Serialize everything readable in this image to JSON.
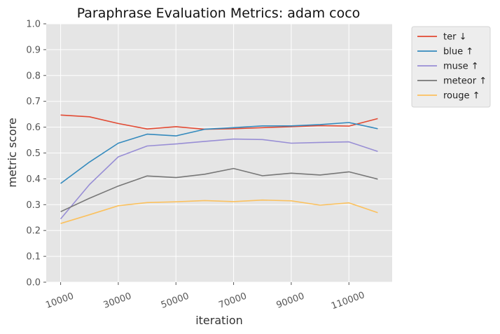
{
  "chart_data": {
    "type": "line",
    "title": "Paraphrase Evaluation Metrics: adam coco",
    "xlabel": "iteration",
    "ylabel": "metric score",
    "x": [
      10000,
      20000,
      30000,
      40000,
      50000,
      60000,
      70000,
      80000,
      90000,
      100000,
      110000,
      120000
    ],
    "xticks": [
      10000,
      30000,
      50000,
      70000,
      90000,
      110000
    ],
    "xlim": [
      5000,
      125000
    ],
    "ylim": [
      0,
      1
    ],
    "yticks": [
      0.0,
      0.1,
      0.2,
      0.3,
      0.4,
      0.5,
      0.6,
      0.7,
      0.8,
      0.9,
      1.0
    ],
    "grid": true,
    "legend_position": "outside-right-top",
    "series": [
      {
        "name": "ter ↓",
        "color": "#E24A33",
        "values": [
          0.647,
          0.64,
          0.614,
          0.593,
          0.602,
          0.592,
          0.594,
          0.598,
          0.602,
          0.606,
          0.604,
          0.633
        ]
      },
      {
        "name": "blue ↑",
        "color": "#348ABD",
        "values": [
          0.382,
          0.465,
          0.538,
          0.573,
          0.566,
          0.592,
          0.598,
          0.605,
          0.605,
          0.61,
          0.618,
          0.594
        ]
      },
      {
        "name": "muse ↑",
        "color": "#988ED5",
        "values": [
          0.245,
          0.378,
          0.485,
          0.527,
          0.535,
          0.545,
          0.554,
          0.552,
          0.538,
          0.541,
          0.543,
          0.506
        ]
      },
      {
        "name": "meteor ↑",
        "color": "#777777",
        "values": [
          0.273,
          0.325,
          0.372,
          0.411,
          0.405,
          0.418,
          0.44,
          0.412,
          0.422,
          0.415,
          0.427,
          0.399
        ]
      },
      {
        "name": "rouge ↑",
        "color": "#FBC15E",
        "values": [
          0.227,
          0.261,
          0.296,
          0.308,
          0.311,
          0.316,
          0.312,
          0.318,
          0.315,
          0.298,
          0.307,
          0.269
        ]
      }
    ]
  }
}
